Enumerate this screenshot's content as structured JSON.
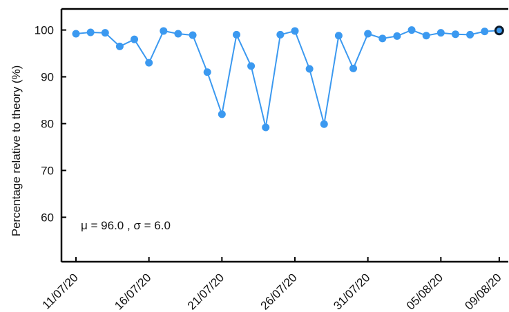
{
  "chart_data": {
    "type": "line",
    "title": "",
    "xlabel": "",
    "ylabel": "Percentage relative to theory (%)",
    "ylim": [
      50.5,
      104.5
    ],
    "xlim": [
      "2020-07-11",
      "2020-08-10"
    ],
    "yticks": [
      60,
      70,
      80,
      90,
      100
    ],
    "xticks": [
      {
        "date": "2020-07-11",
        "label": "11/07/20"
      },
      {
        "date": "2020-07-16",
        "label": "16/07/20"
      },
      {
        "date": "2020-07-21",
        "label": "21/07/20"
      },
      {
        "date": "2020-07-26",
        "label": "26/07/20"
      },
      {
        "date": "2020-07-31",
        "label": "31/07/20"
      },
      {
        "date": "2020-08-05",
        "label": "05/08/20"
      },
      {
        "date": "2020-08-09",
        "label": "09/08/20"
      }
    ],
    "grid": false,
    "line_color": "#3b99f0",
    "highlight_color": "#0d1b2a",
    "series": [
      {
        "name": "",
        "x": [
          "2020-07-11",
          "2020-07-12",
          "2020-07-13",
          "2020-07-14",
          "2020-07-15",
          "2020-07-16",
          "2020-07-17",
          "2020-07-18",
          "2020-07-19",
          "2020-07-20",
          "2020-07-21",
          "2020-07-22",
          "2020-07-23",
          "2020-07-24",
          "2020-07-25",
          "2020-07-26",
          "2020-07-27",
          "2020-07-28",
          "2020-07-29",
          "2020-07-30",
          "2020-07-31",
          "2020-08-01",
          "2020-08-02",
          "2020-08-03",
          "2020-08-04",
          "2020-08-05",
          "2020-08-06",
          "2020-08-07",
          "2020-08-08",
          "2020-08-09"
        ],
        "y": [
          99.2,
          99.5,
          99.4,
          96.5,
          98.0,
          93.0,
          99.8,
          99.2,
          98.9,
          91.0,
          82.0,
          99.0,
          92.3,
          79.2,
          99.0,
          99.8,
          91.7,
          79.9,
          98.8,
          91.8,
          99.2,
          98.2,
          98.7,
          100.0,
          98.8,
          99.4,
          99.1,
          99.0,
          99.7,
          99.9
        ]
      }
    ],
    "highlight_point": {
      "x": "2020-08-09",
      "y": 99.9
    },
    "annotation": "μ = 96.0 , σ = 6.0"
  }
}
